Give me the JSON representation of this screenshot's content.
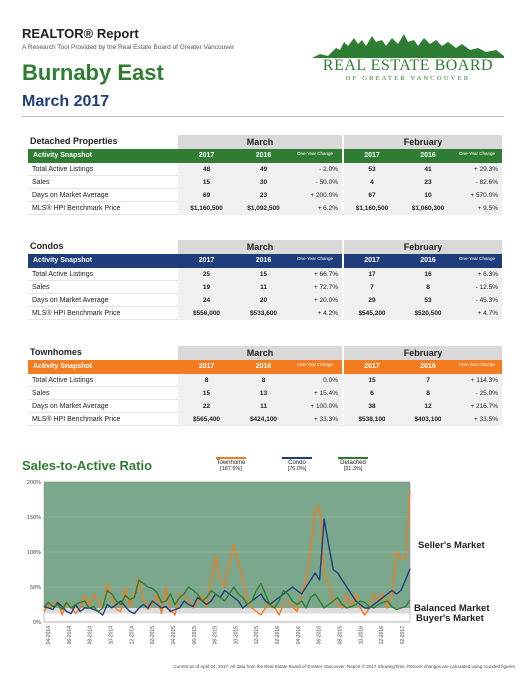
{
  "header": {
    "report_title": "REALTOR® Report",
    "subtitle": "A Research Tool Provided by the Real Estate Board of Greater Vancouver",
    "area": "Burnaby East",
    "month": "March 2017",
    "logo_text": "REAL ESTATE BOARD",
    "logo_sub": "OF GREATER VANCOUVER"
  },
  "columns": {
    "month1": "March",
    "month2": "February",
    "y1": "2017",
    "y2": "2016",
    "change": "One-Year Change",
    "snapshot": "Activity Snapshot"
  },
  "colors": {
    "detached": "#2f7d32",
    "condo": "#1f3d7a",
    "townhome": "#f47c20"
  },
  "sections": {
    "detached": {
      "title": "Detached Properties",
      "rows": [
        {
          "label": "Total Active Listings",
          "m1a": "48",
          "m1b": "49",
          "m1c": "- 2.0%",
          "m2a": "53",
          "m2b": "41",
          "m2c": "+ 29.3%"
        },
        {
          "label": "Sales",
          "m1a": "15",
          "m1b": "30",
          "m1c": "- 50.0%",
          "m2a": "4",
          "m2b": "23",
          "m2c": "- 82.6%"
        },
        {
          "label": "Days on Market Average",
          "m1a": "69",
          "m1b": "23",
          "m1c": "+ 200.0%",
          "m2a": "67",
          "m2b": "10",
          "m2c": "+ 570.0%"
        },
        {
          "label": "MLS® HPI Benchmark Price",
          "m1a": "$1,160,500",
          "m1b": "$1,092,500",
          "m1c": "+ 6.2%",
          "m2a": "$1,160,500",
          "m2b": "$1,060,300",
          "m2c": "+ 9.5%"
        }
      ]
    },
    "condos": {
      "title": "Condos",
      "rows": [
        {
          "label": "Total Active Listings",
          "m1a": "25",
          "m1b": "15",
          "m1c": "+ 66.7%",
          "m2a": "17",
          "m2b": "16",
          "m2c": "+ 6.3%"
        },
        {
          "label": "Sales",
          "m1a": "19",
          "m1b": "11",
          "m1c": "+ 72.7%",
          "m2a": "7",
          "m2b": "8",
          "m2c": "- 12.5%"
        },
        {
          "label": "Days on Market Average",
          "m1a": "24",
          "m1b": "20",
          "m1c": "+ 20.0%",
          "m2a": "29",
          "m2b": "53",
          "m2c": "- 45.3%"
        },
        {
          "label": "MLS® HPI Benchmark Price",
          "m1a": "$556,000",
          "m1b": "$533,600",
          "m1c": "+ 4.2%",
          "m2a": "$545,200",
          "m2b": "$520,500",
          "m2c": "+ 4.7%"
        }
      ]
    },
    "townhomes": {
      "title": "Townhomes",
      "rows": [
        {
          "label": "Total Active Listings",
          "m1a": "8",
          "m1b": "8",
          "m1c": "0.0%",
          "m2a": "15",
          "m2b": "7",
          "m2c": "+ 114.3%"
        },
        {
          "label": "Sales",
          "m1a": "15",
          "m1b": "13",
          "m1c": "+ 15.4%",
          "m2a": "6",
          "m2b": "8",
          "m2c": "- 25.0%"
        },
        {
          "label": "Days on Market Average",
          "m1a": "22",
          "m1b": "11",
          "m1c": "+ 100.0%",
          "m2a": "38",
          "m2b": "12",
          "m2c": "+ 216.7%"
        },
        {
          "label": "MLS® HPI Benchmark Price",
          "m1a": "$565,400",
          "m1b": "$424,100",
          "m1c": "+ 33.3%",
          "m2a": "$538,100",
          "m2b": "$403,100",
          "m2c": "+ 33.5%"
        }
      ]
    }
  },
  "chart_title": "Sales-to-Active Ratio",
  "market_labels": {
    "sellers": "Seller's Market",
    "balanced": "Balanced Market",
    "buyers": "Buyer's Market"
  },
  "footer": "Current as of April 04, 2017. All data from the Real Estate Board of Greater Vancouver. Report © 2017 ShowingTime. Percent changes are calculated using rounded figures.",
  "chart_data": {
    "type": "line",
    "title": "Sales-to-Active Ratio",
    "ylim": [
      0,
      200
    ],
    "yticks": [
      "0%",
      "50%",
      "100%",
      "150%",
      "200%"
    ],
    "yticks_values": [
      0,
      50,
      100,
      150,
      200
    ],
    "bands": {
      "buyers_below": 12,
      "sellers_above": 20
    },
    "x_labels": [
      "04-2014",
      "06-2014",
      "08-2014",
      "10-2014",
      "12-2014",
      "02-2015",
      "04-2015",
      "06-2015",
      "08-2015",
      "10-2015",
      "12-2015",
      "02-2016",
      "04-2016",
      "06-2016",
      "08-2016",
      "10-2016",
      "12-2016",
      "02-2017"
    ],
    "series": [
      {
        "name": "Townhome",
        "legend_value": "[187.5%]",
        "color": "#f47c20",
        "values": [
          15,
          25,
          22,
          30,
          10,
          28,
          22,
          12,
          20,
          38,
          22,
          40,
          30,
          20,
          55,
          35,
          18,
          15,
          48,
          22,
          40,
          62,
          32,
          18,
          25,
          40,
          12,
          50,
          18,
          10,
          40,
          38,
          30,
          20,
          30,
          38,
          22,
          60,
          95,
          60,
          50,
          85,
          110,
          85,
          60,
          30,
          20,
          15,
          10,
          20,
          28,
          22,
          10,
          25,
          30,
          22,
          15,
          40,
          60,
          100,
          162,
          165,
          70,
          55,
          30,
          25,
          20,
          40,
          22,
          40,
          20,
          10,
          20,
          40,
          30,
          40,
          20,
          40,
          100,
          90,
          92,
          187.5
        ]
      },
      {
        "name": "Condo",
        "legend_value": "[76.0%]",
        "color": "#1f3d7a",
        "values": [
          22,
          20,
          18,
          28,
          22,
          15,
          12,
          25,
          15,
          20,
          20,
          18,
          15,
          10,
          25,
          20,
          25,
          30,
          22,
          15,
          12,
          20,
          25,
          20,
          30,
          25,
          20,
          22,
          15,
          18,
          20,
          30,
          25,
          22,
          35,
          30,
          25,
          30,
          40,
          35,
          45,
          40,
          35,
          30,
          20,
          25,
          30,
          35,
          40,
          30,
          25,
          30,
          35,
          40,
          45,
          50,
          45,
          40,
          50,
          60,
          70,
          60,
          147,
          110,
          75,
          70,
          60,
          50,
          40,
          30,
          25,
          20,
          20,
          25,
          30,
          35,
          40,
          45,
          40,
          45,
          60,
          76
        ]
      },
      {
        "name": "Detached",
        "legend_value": "[31.3%]",
        "color": "#2f7d32",
        "values": [
          22,
          28,
          22,
          25,
          18,
          28,
          20,
          25,
          28,
          30,
          20,
          22,
          15,
          20,
          45,
          40,
          30,
          25,
          38,
          32,
          35,
          60,
          55,
          50,
          48,
          42,
          28,
          30,
          40,
          25,
          35,
          40,
          50,
          45,
          40,
          30,
          35,
          45,
          40,
          35,
          30,
          40,
          50,
          40,
          35,
          25,
          30,
          45,
          55,
          40,
          25,
          20,
          30,
          45,
          40,
          30,
          25,
          30,
          20,
          35,
          40,
          30,
          20,
          25,
          30,
          35,
          25,
          20,
          22,
          25,
          30,
          28,
          22,
          20,
          25,
          28,
          30,
          22,
          18,
          20,
          22,
          31.3
        ]
      }
    ]
  }
}
